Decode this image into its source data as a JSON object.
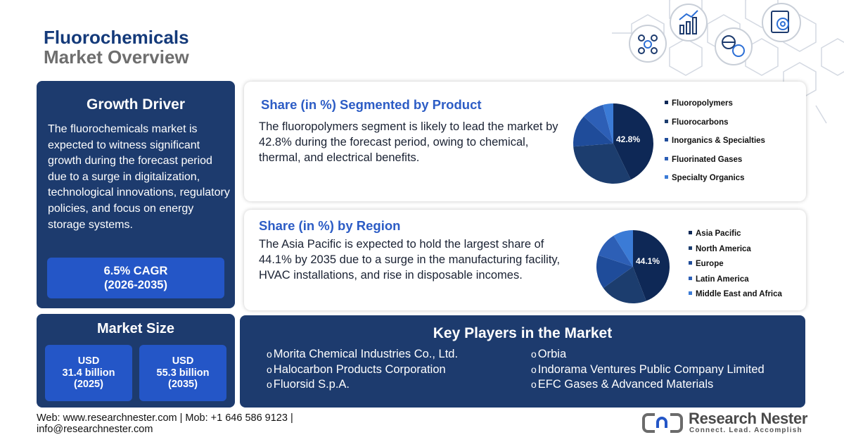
{
  "header": {
    "title_line1": "Fluorochemicals",
    "title_line2": "Market Overview"
  },
  "growth_driver": {
    "heading": "Growth Driver",
    "text": "The fluorochemicals market is expected to witness significant growth during the forecast period due to a surge in digitalization, technological innovations, regulatory policies, and focus on energy storage systems.",
    "cagr_line1": "6.5% CAGR",
    "cagr_line2": "(2026-2035)"
  },
  "market_size": {
    "heading": "Market Size",
    "boxes": [
      {
        "line1": "USD",
        "line2": "31.4 billion",
        "line3": "(2025)"
      },
      {
        "line1": "USD",
        "line2": "55.3 billion",
        "line3": "(2035)"
      }
    ]
  },
  "product_card": {
    "heading": "Share (in %) Segmented by Product",
    "text": "The fluoropolymers segment is likely to lead the market by 42.8% during the forecast period, owing to chemical, thermal, and electrical benefits."
  },
  "region_card": {
    "heading": "Share (in %) by Region",
    "text": "The Asia Pacific is expected to hold the largest share of 44.1% by 2035 due to a surge in the manufacturing facility, HVAC installations, and rise in disposable incomes."
  },
  "key_players": {
    "heading": "Key Players in the Market",
    "bullet": "o",
    "left_column": [
      "Morita Chemical Industries Co., Ltd.",
      "Halocarbon Products Corporation",
      "Fluorsid S.p.A."
    ],
    "right_column": [
      "Orbia",
      "Indorama Ventures Public Company Limited",
      "EFC Gases & Advanced Materials"
    ]
  },
  "footer": {
    "web_line": "Web: www.researchnester.com | Mob: +1 646 586 9123 |",
    "email_line": "info@researchnester.com",
    "logo_name": "Research Nester",
    "logo_tagline": "Connect. Lead. Accomplish"
  },
  "colors": {
    "panel_navy": "#1d3b6e",
    "accent_blue": "#2456c7",
    "heading_blue": "#2c5cc5"
  },
  "icons": [
    "network-users-icon",
    "bar-growth-icon",
    "globe-dollar-icon",
    "target-report-icon"
  ],
  "chart_data": [
    {
      "type": "pie",
      "title": "Share (in %) Segmented by Product",
      "slices": [
        {
          "label": "Fluoropolymers",
          "value": 42.8,
          "value_label": "42.8%",
          "color": "#0e2856"
        },
        {
          "label": "Fluorocarbons",
          "value": 31.0,
          "color": "#1c3d6e"
        },
        {
          "label": "Inorganics & Specialties",
          "value": 13.0,
          "color": "#1f4c9a"
        },
        {
          "label": "Fluorinated Gases",
          "value": 9.0,
          "color": "#2d5fb6"
        },
        {
          "label": "Specialty Organics",
          "value": 4.2,
          "color": "#3b7bd6"
        }
      ],
      "legend": "right"
    },
    {
      "type": "pie",
      "title": "Share (in %) by Region",
      "slices": [
        {
          "label": "Asia Pacific",
          "value": 44.1,
          "value_label": "44.1%",
          "color": "#0e2856"
        },
        {
          "label": "North America",
          "value": 21.0,
          "color": "#1c3d6e"
        },
        {
          "label": "Europe",
          "value": 15.0,
          "color": "#1f4c9a"
        },
        {
          "label": "Latin America",
          "value": 11.0,
          "color": "#2d5fb6"
        },
        {
          "label": "Middle East and Africa",
          "value": 8.9,
          "color": "#3b7bd6"
        }
      ],
      "legend": "right"
    }
  ]
}
